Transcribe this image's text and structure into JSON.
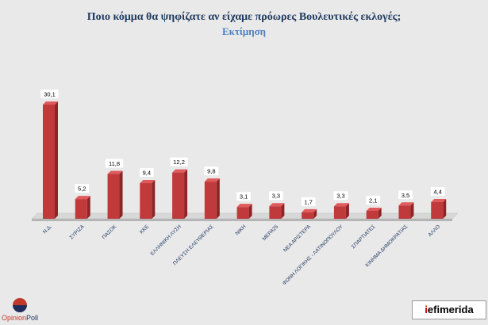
{
  "header": {
    "title": "Ποιο κόμμα θα ψηφίζατε αν είχαμε πρόωρες Βουλευτικές εκλογές;",
    "subtitle": "Εκτίμηση"
  },
  "chart_data": {
    "type": "bar",
    "title": "Ποιο κόμμα θα ψηφίζατε αν είχαμε πρόωρες Βουλευτικές εκλογές;",
    "subtitle": "Εκτίμηση",
    "categories": [
      "Ν.Δ.",
      "ΣΥΡΙΖΑ",
      "ΠΑΣΟΚ",
      "ΚΚΕ",
      "ΕΛΛΗΝΙΚΗ ΛΥΣΗ",
      "ΠΛΕΥΣΗ ΕΛΕΥΘΕΡΙΑΣ",
      "ΝΙΚΗ",
      "ΜΕΡΑ25",
      "ΝΕΑ ΑΡΙΣΤΕΡΑ",
      "ΦΩΝΗ ΛΟΓΙΚΗΣ - ΛΑΤΙΝΟΠΟΥΛΟΥ",
      "ΣΠΑΡΤΙΑΤΕΣ",
      "ΚΙΝΗΜΑ ΔΗΜΟΚΡΑΤΙΑΣ",
      "ΑΛΛΟ"
    ],
    "values": [
      30.1,
      5.2,
      11.8,
      9.4,
      12.2,
      9.8,
      3.1,
      3.3,
      1.7,
      3.3,
      2.1,
      3.5,
      4.4
    ],
    "value_labels": [
      "30,1",
      "5,2",
      "11,8",
      "9,4",
      "12,2",
      "9,8",
      "3,1",
      "3,3",
      "1,7",
      "3,3",
      "2,1",
      "3,5",
      "4,4"
    ],
    "ylim": [
      0,
      32
    ],
    "grid": false,
    "legend": "none",
    "bar_color": "#c0393b",
    "bar_side_color": "#8e2426",
    "bar_top_color": "#e05a5c"
  },
  "logos": {
    "left_part1": "Opinion",
    "left_part2": "Poll",
    "right_part1": "i",
    "right_part2": "efimerida"
  }
}
